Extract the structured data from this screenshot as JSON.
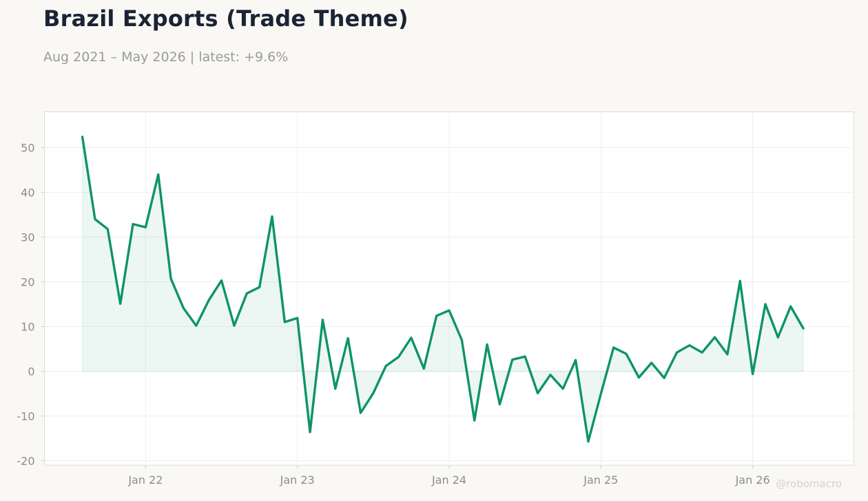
{
  "header": {
    "title": "Brazil Exports (Trade Theme)",
    "subtitle": "Aug 2021 – May 2026 | latest: +9.6%"
  },
  "watermark": "@robomacro",
  "colors": {
    "line": "#0e9466",
    "fill": "#0e9466",
    "background": "#f9f8f4",
    "plot_background": "#ffffff",
    "grid": "#efefec",
    "tick_text": "#8c8c88",
    "title": "#1b2335"
  },
  "chart_data": {
    "type": "area",
    "title": "Brazil Exports (Trade Theme)",
    "subtitle": "Aug 2021 – May 2026 | latest: +9.6%",
    "xlabel": "",
    "ylabel": "",
    "ylim": [
      -21,
      58
    ],
    "xlim": [
      "2021-05",
      "2026-09"
    ],
    "yticks": [
      50,
      40,
      30,
      20,
      10,
      0,
      -10,
      -20
    ],
    "xticks": [
      {
        "label": "Jan 22",
        "date": "2022-01"
      },
      {
        "label": "Jan 23",
        "date": "2023-01"
      },
      {
        "label": "Jan 24",
        "date": "2024-01"
      },
      {
        "label": "Jan 25",
        "date": "2025-01"
      },
      {
        "label": "Jan 26",
        "date": "2026-01"
      }
    ],
    "grid": true,
    "legend": "none",
    "series": [
      {
        "x": [
          "2021-08",
          "2021-09",
          "2021-10",
          "2021-11",
          "2021-12",
          "2022-01",
          "2022-02",
          "2022-03",
          "2022-04",
          "2022-05",
          "2022-06",
          "2022-07",
          "2022-08",
          "2022-09",
          "2022-10",
          "2022-11",
          "2022-12",
          "2023-01",
          "2023-02",
          "2023-03",
          "2023-04",
          "2023-05",
          "2023-06",
          "2023-07",
          "2023-08",
          "2023-09",
          "2023-10",
          "2023-11",
          "2023-12",
          "2024-01",
          "2024-02",
          "2024-03",
          "2024-04",
          "2024-05",
          "2024-06",
          "2024-07",
          "2024-08",
          "2024-09",
          "2024-10",
          "2024-11",
          "2024-12",
          "2025-01",
          "2025-02",
          "2025-03",
          "2025-04",
          "2025-05",
          "2025-06",
          "2025-07",
          "2025-08",
          "2025-09",
          "2025-10",
          "2025-11",
          "2025-12",
          "2026-01",
          "2026-02",
          "2026-03",
          "2026-04",
          "2026-05"
        ],
        "values": [
          52.4,
          34,
          31.8,
          15.1,
          32.9,
          32.2,
          44,
          20.7,
          14.1,
          10.2,
          15.9,
          20.3,
          10.2,
          17.4,
          18.8,
          34.6,
          11,
          11.9,
          -13.6,
          11.5,
          -3.9,
          7.4,
          -9.3,
          -4.9,
          1.2,
          3.2,
          7.5,
          0.6,
          12.4,
          13.6,
          7,
          -11,
          6,
          -7.4,
          2.6,
          3.3,
          -4.9,
          -0.8,
          -3.9,
          2.5,
          -15.7,
          -5,
          5.3,
          3.9,
          -1.4,
          1.9,
          -1.5,
          4.2,
          5.8,
          4.2,
          7.6,
          3.8,
          20.2,
          -0.6,
          15,
          7.6,
          14.5,
          9.6
        ]
      }
    ]
  }
}
